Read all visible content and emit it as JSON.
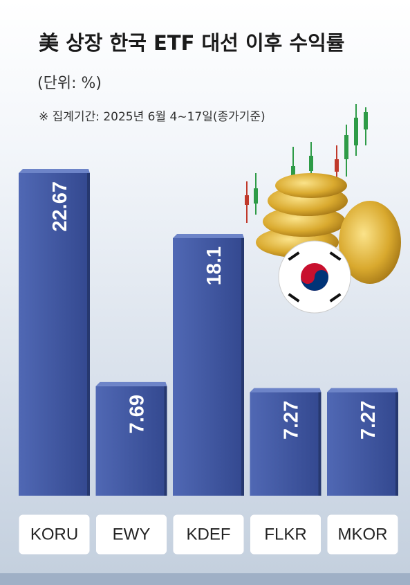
{
  "chart_data": {
    "type": "bar",
    "title": "美 상장 한국 ETF 대선 이후 수익률",
    "subtitle": "(단위: %)",
    "note": "※ 집계기간: 2025년 6월 4~17일(종가기준)",
    "categories": [
      "KORU",
      "EWY",
      "KDEF",
      "FLKR",
      "MKOR"
    ],
    "values": [
      22.67,
      7.69,
      18.1,
      7.27,
      7.27
    ],
    "color": "#3f56a3"
  }
}
